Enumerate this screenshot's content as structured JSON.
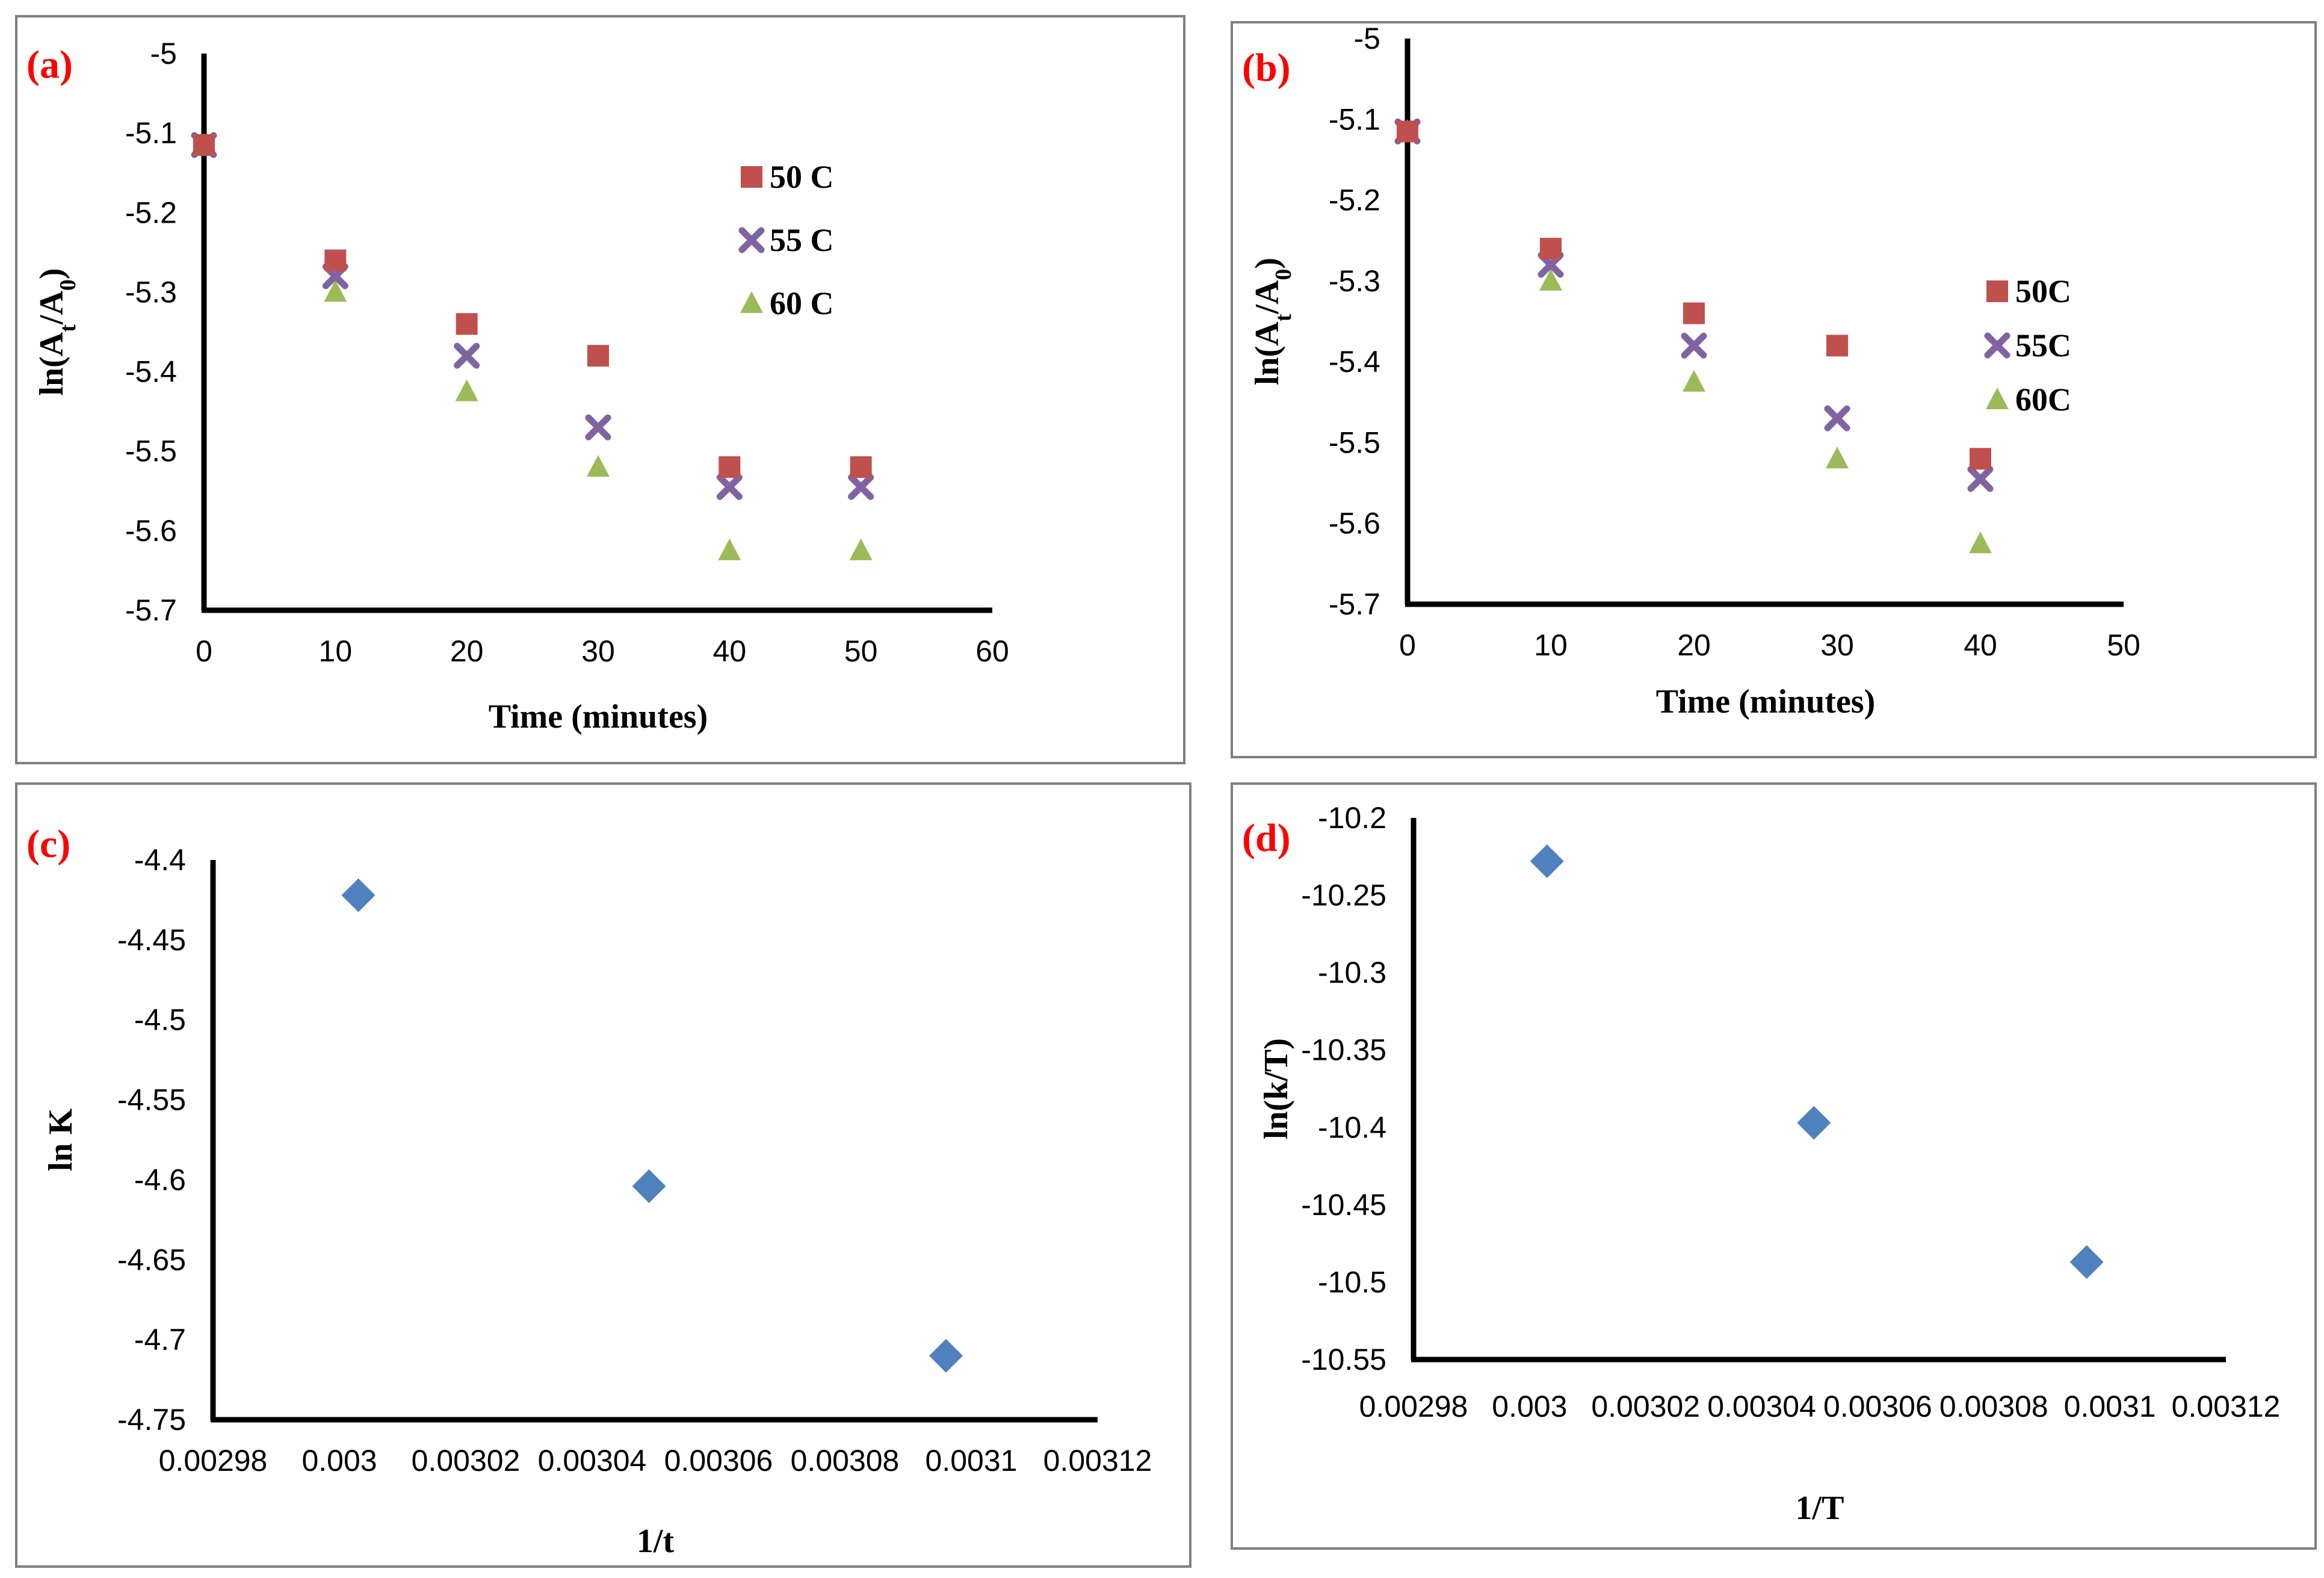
{
  "colors": {
    "series_50": "#c0504d",
    "series_55": "#8064a2",
    "series_60": "#9bbb59",
    "diamond": "#4f81bd",
    "panel_label": "#ff0000",
    "axis": "#000000",
    "frame": "#7f7f7f"
  },
  "chart_data": [
    {
      "id": "a",
      "type": "scatter",
      "label": "(a)",
      "title": "",
      "xlabel": "Time  (minutes)",
      "ylabel": "ln(A_t/A_0)",
      "xlim": [
        0,
        60
      ],
      "ylim": [
        -5.7,
        -5
      ],
      "xticks": [
        "0",
        "10",
        "20",
        "30",
        "40",
        "50",
        "60"
      ],
      "yticks": [
        "-5",
        "-5.1",
        "-5.2",
        "-5.3",
        "-5.4",
        "-5.5",
        "-5.6",
        "-5.7"
      ],
      "series": [
        {
          "name": "50 C",
          "marker": "square",
          "color": "#c0504d",
          "x": [
            0,
            10,
            20,
            30,
            40,
            50
          ],
          "y": [
            -5.115,
            -5.26,
            -5.34,
            -5.38,
            -5.52,
            -5.52
          ]
        },
        {
          "name": "55 C",
          "marker": "x",
          "color": "#8064a2",
          "x": [
            0,
            10,
            20,
            30,
            40,
            50
          ],
          "y": [
            -5.115,
            -5.28,
            -5.38,
            -5.47,
            -5.545,
            -5.545
          ]
        },
        {
          "name": "60 C",
          "marker": "triangle",
          "color": "#9bbb59",
          "x": [
            0,
            10,
            20,
            30,
            40,
            50
          ],
          "y": [
            -5.115,
            -5.3,
            -5.425,
            -5.52,
            -5.625,
            -5.625
          ]
        }
      ],
      "legend": "right-inside"
    },
    {
      "id": "b",
      "type": "scatter",
      "label": "(b)",
      "title": "",
      "xlabel": "Time (minutes)",
      "ylabel": "ln(A_t/A_0)",
      "xlim": [
        0,
        50
      ],
      "ylim": [
        -5.7,
        -5
      ],
      "xticks": [
        "0",
        "10",
        "20",
        "30",
        "40",
        "50"
      ],
      "yticks": [
        "-5",
        "-5.1",
        "-5.2",
        "-5.3",
        "-5.4",
        "-5.5",
        "-5.6",
        "-5.7"
      ],
      "series": [
        {
          "name": "50C",
          "marker": "square",
          "color": "#c0504d",
          "x": [
            0,
            10,
            20,
            30,
            40
          ],
          "y": [
            -5.115,
            -5.26,
            -5.34,
            -5.38,
            -5.52
          ]
        },
        {
          "name": "55C",
          "marker": "x",
          "color": "#8064a2",
          "x": [
            0,
            10,
            20,
            30,
            40
          ],
          "y": [
            -5.115,
            -5.28,
            -5.38,
            -5.47,
            -5.545
          ]
        },
        {
          "name": "60C",
          "marker": "triangle",
          "color": "#9bbb59",
          "x": [
            0,
            10,
            20,
            30,
            40
          ],
          "y": [
            -5.115,
            -5.3,
            -5.425,
            -5.52,
            -5.625
          ]
        }
      ],
      "legend": "right-inside"
    },
    {
      "id": "c",
      "type": "scatter",
      "label": "(c)",
      "title": "",
      "xlabel": "1/t",
      "ylabel": "ln K",
      "xlim": [
        0.00298,
        0.00312
      ],
      "ylim": [
        -4.75,
        -4.4
      ],
      "xticks": [
        "0.00298",
        "0.003",
        "0.00302",
        "0.00304",
        "0.00306",
        "0.00308",
        "0.0031",
        "0.00312"
      ],
      "yticks": [
        "-4.4",
        "-4.45",
        "-4.5",
        "-4.55",
        "-4.6",
        "-4.65",
        "-4.7",
        "-4.75"
      ],
      "series": [
        {
          "name": "",
          "marker": "diamond",
          "color": "#4f81bd",
          "x": [
            0.003003,
            0.003049,
            0.003096
          ],
          "y": [
            -4.422,
            -4.604,
            -4.71
          ]
        }
      ],
      "legend": "none"
    },
    {
      "id": "d",
      "type": "scatter",
      "label": "(d)",
      "title": "",
      "xlabel": "1/T",
      "ylabel": "ln(k/T)",
      "xlim": [
        0.00298,
        0.00312
      ],
      "ylim": [
        -10.55,
        -10.2
      ],
      "xticks": [
        "0.00298",
        "0.003",
        "0.00302",
        "0.00304",
        "0.00306",
        "0.00308",
        "0.0031",
        "0.00312"
      ],
      "yticks": [
        "-10.2",
        "-10.25",
        "-10.3",
        "-10.35",
        "-10.4",
        "-10.45",
        "-10.5",
        "-10.55"
      ],
      "series": [
        {
          "name": "",
          "marker": "diamond",
          "color": "#4f81bd",
          "x": [
            0.003003,
            0.003049,
            0.003096
          ],
          "y": [
            -10.228,
            -10.397,
            -10.487
          ]
        }
      ],
      "legend": "none"
    }
  ]
}
